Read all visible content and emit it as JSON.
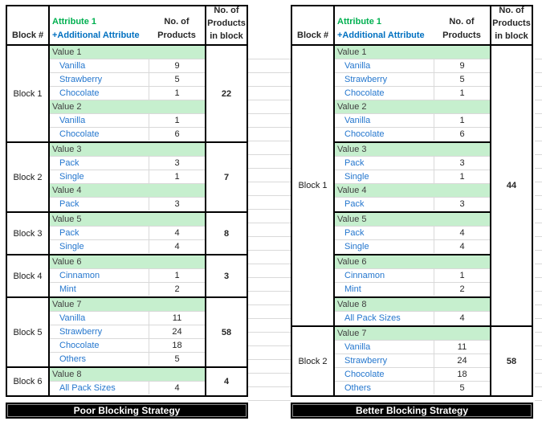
{
  "colors": {
    "value_fill": "#C6EFCE",
    "value_text": "#3F3F3F",
    "item_blue": "#2577CE",
    "attr_green": "#00B050",
    "header_blue": "#0070C0",
    "grid_line": "#D9D9D9",
    "table_border": "#000000",
    "banner_bg": "#000000",
    "banner_text": "#FFFFFF"
  },
  "tables": [
    {
      "name": "poor",
      "banner": "Poor Blocking Strategy",
      "header": {
        "block": "Block #",
        "attr_line1": "Attribute 1",
        "attr_line2": "+Additional Attribute",
        "count_line1": "No. of",
        "count_line2": "Products",
        "total_line1": "No. of",
        "total_line2": "Products",
        "total_line3": "in block"
      },
      "blocks": [
        {
          "label": "Block 1",
          "total": "22",
          "groups": [
            [
              {
                "t": "value",
                "label": "Value 1"
              },
              {
                "t": "item",
                "label": "Vanilla",
                "count": "9"
              },
              {
                "t": "item",
                "label": "Strawberry",
                "count": "5"
              },
              {
                "t": "item",
                "label": "Chocolate",
                "count": "1"
              },
              {
                "t": "value",
                "label": "Value 2"
              },
              {
                "t": "item",
                "label": "Vanilla",
                "count": "1"
              },
              {
                "t": "item",
                "label": "Chocolate",
                "count": "6"
              }
            ]
          ]
        },
        {
          "label": "Block 2",
          "total": "7",
          "groups": [
            [
              {
                "t": "value",
                "label": "Value 3"
              },
              {
                "t": "item",
                "label": "Pack",
                "count": "3"
              },
              {
                "t": "item",
                "label": "Single",
                "count": "1"
              },
              {
                "t": "value",
                "label": "Value 4"
              },
              {
                "t": "item",
                "label": "Pack",
                "count": "3"
              }
            ]
          ]
        },
        {
          "label": "Block 3",
          "total": "8",
          "groups": [
            [
              {
                "t": "value",
                "label": "Value 5"
              },
              {
                "t": "item",
                "label": "Pack",
                "count": "4"
              },
              {
                "t": "item",
                "label": "Single",
                "count": "4"
              }
            ]
          ]
        },
        {
          "label": "Block 4",
          "total": "3",
          "groups": [
            [
              {
                "t": "value",
                "label": "Value 6"
              },
              {
                "t": "item",
                "label": "Cinnamon",
                "count": "1"
              },
              {
                "t": "item",
                "label": "Mint",
                "count": "2"
              }
            ]
          ]
        },
        {
          "label": "Block 5",
          "total": "58",
          "groups": [
            [
              {
                "t": "value",
                "label": "Value 7"
              },
              {
                "t": "item",
                "label": "Vanilla",
                "count": "11"
              },
              {
                "t": "item",
                "label": "Strawberry",
                "count": "24"
              },
              {
                "t": "item",
                "label": "Chocolate",
                "count": "18"
              },
              {
                "t": "item",
                "label": "Others",
                "count": "5"
              }
            ]
          ]
        },
        {
          "label": "Block 6",
          "total": "4",
          "groups": [
            [
              {
                "t": "value",
                "label": "Value 8"
              },
              {
                "t": "item",
                "label": "All Pack Sizes",
                "count": "4"
              }
            ]
          ]
        }
      ]
    },
    {
      "name": "better",
      "banner": "Better Blocking Strategy",
      "header": {
        "block": "Block #",
        "attr_line1": "Attribute 1",
        "attr_line2": "+Additional Attribute",
        "count_line1": "No. of",
        "count_line2": "Products",
        "total_line1": "No. of",
        "total_line2": "Products",
        "total_line3": "in block"
      },
      "blocks": [
        {
          "label": "Block 1",
          "total": "44",
          "groups": [
            [
              {
                "t": "value",
                "label": "Value 1"
              },
              {
                "t": "item",
                "label": "Vanilla",
                "count": "9"
              },
              {
                "t": "item",
                "label": "Strawberry",
                "count": "5"
              },
              {
                "t": "item",
                "label": "Chocolate",
                "count": "1"
              },
              {
                "t": "value",
                "label": "Value 2"
              },
              {
                "t": "item",
                "label": "Vanilla",
                "count": "1"
              },
              {
                "t": "item",
                "label": "Chocolate",
                "count": "6"
              }
            ],
            [
              {
                "t": "value",
                "label": "Value 3"
              },
              {
                "t": "item",
                "label": "Pack",
                "count": "3"
              },
              {
                "t": "item",
                "label": "Single",
                "count": "1"
              },
              {
                "t": "value",
                "label": "Value 4"
              },
              {
                "t": "item",
                "label": "Pack",
                "count": "3"
              }
            ],
            [
              {
                "t": "value",
                "label": "Value 5"
              },
              {
                "t": "item",
                "label": "Pack",
                "count": "4"
              },
              {
                "t": "item",
                "label": "Single",
                "count": "4"
              }
            ],
            [
              {
                "t": "value",
                "label": "Value 6"
              },
              {
                "t": "item",
                "label": "Cinnamon",
                "count": "1"
              },
              {
                "t": "item",
                "label": "Mint",
                "count": "2"
              }
            ],
            [
              {
                "t": "value",
                "label": "Value 8"
              },
              {
                "t": "item",
                "label": "All Pack Sizes",
                "count": "4"
              }
            ]
          ]
        },
        {
          "label": "Block 2",
          "total": "58",
          "groups": [
            [
              {
                "t": "value",
                "label": "Value 7"
              },
              {
                "t": "item",
                "label": "Vanilla",
                "count": "11"
              },
              {
                "t": "item",
                "label": "Strawberry",
                "count": "24"
              },
              {
                "t": "item",
                "label": "Chocolate",
                "count": "18"
              },
              {
                "t": "item",
                "label": "Others",
                "count": "5"
              }
            ]
          ]
        }
      ]
    }
  ]
}
